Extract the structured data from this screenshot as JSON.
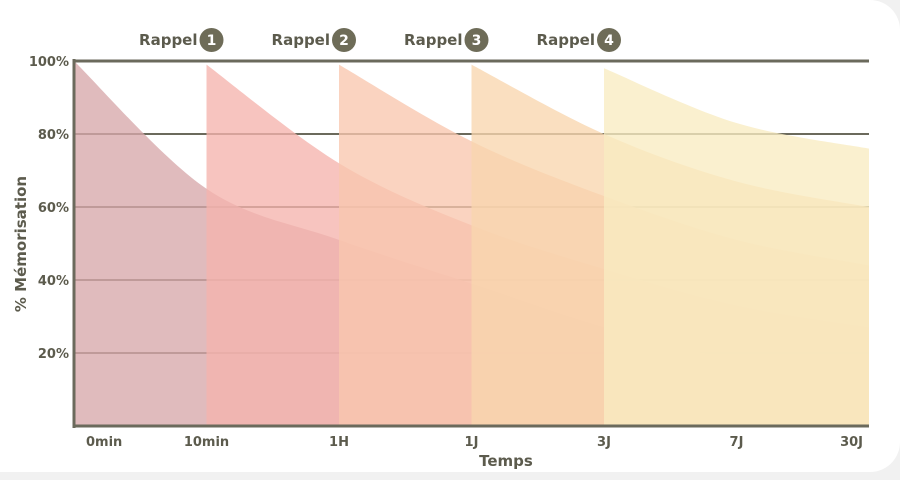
{
  "chart_data": {
    "type": "area",
    "title": "",
    "xlabel": "Temps",
    "ylabel": "% Mémorisation",
    "categories": [
      "0min",
      "10min",
      "1H",
      "1J",
      "3J",
      "7J",
      "30J"
    ],
    "ylim": [
      0,
      100
    ],
    "y_ticks": [
      "20%",
      "40%",
      "60%",
      "80%",
      "100%"
    ],
    "grid": true,
    "legend": "none",
    "rappels": [
      {
        "label": "Rappel",
        "number": "1",
        "at": "10min"
      },
      {
        "label": "Rappel",
        "number": "2",
        "at": "1H"
      },
      {
        "label": "Rappel",
        "number": "3",
        "at": "1J"
      },
      {
        "label": "Rappel",
        "number": "4",
        "at": "3J"
      }
    ],
    "series": [
      {
        "color": "#d7a8ab",
        "x": [
          0,
          1,
          2,
          3,
          4,
          5,
          6
        ],
        "y": [
          100,
          65,
          51,
          39,
          27,
          18,
          12
        ]
      },
      {
        "color": "#f5b4ad",
        "x": [
          1,
          2,
          3,
          4,
          5,
          6
        ],
        "y": [
          99,
          72,
          55,
          43,
          33,
          27
        ]
      },
      {
        "color": "#f8c7ae",
        "x": [
          2,
          3,
          4,
          5,
          6
        ],
        "y": [
          99,
          78,
          63,
          51,
          44
        ]
      },
      {
        "color": "#f9d6ae",
        "x": [
          3,
          4,
          5,
          6
        ],
        "y": [
          99,
          80,
          67,
          60
        ]
      },
      {
        "color": "#f8ecc2",
        "x": [
          4,
          5,
          6
        ],
        "y": [
          98,
          83,
          76
        ]
      }
    ]
  }
}
